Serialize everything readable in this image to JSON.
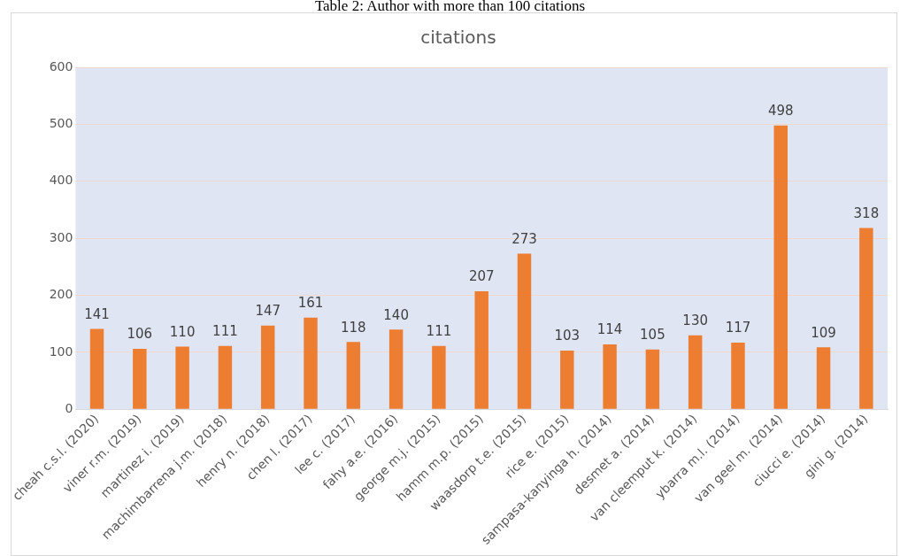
{
  "chart_data": {
    "type": "bar",
    "title": "citations",
    "annotations": [
      "Table 2: Author with more than 100 citations"
    ],
    "categories": [
      "cheah c.s.l. (2020)",
      "viner r.m. (2019)",
      "martinez i. (2019)",
      "machimbarrena j.m. (2018)",
      "henry n. (2018)",
      "chen l. (2017)",
      "lee c. (2017)",
      "fahy a.e. (2016)",
      "george m.j. (2015)",
      "hamm m.p. (2015)",
      "waasdorp t.e. (2015)",
      "rice e. (2015)",
      "sampasa-kanyinga h. (2014)",
      "desmet a. (2014)",
      "van cleemput k. (2014)",
      "ybarra m.l. (2014)",
      "van geel m. (2014)",
      "ciucci e. (2014)",
      "gini g. (2014)"
    ],
    "values": [
      141,
      106,
      110,
      111,
      147,
      161,
      118,
      140,
      111,
      207,
      273,
      103,
      114,
      105,
      130,
      117,
      498,
      109,
      318
    ],
    "color": "#ed7d31",
    "data_labels": true,
    "ylim": [
      0,
      600
    ],
    "yticks": [
      0,
      100,
      200,
      300,
      400,
      500,
      600
    ],
    "grid": "y",
    "legend": false
  }
}
